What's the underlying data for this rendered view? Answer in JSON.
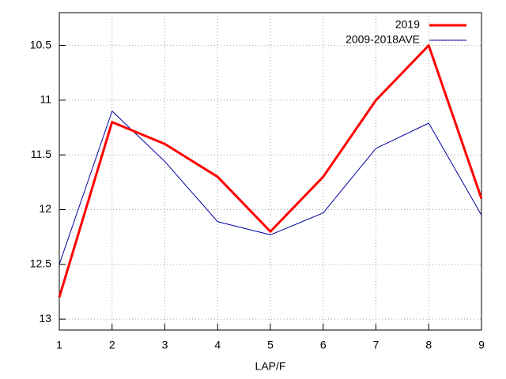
{
  "chart_data": {
    "type": "line",
    "x_label": "LAP/F",
    "x": [
      1,
      2,
      3,
      4,
      5,
      6,
      7,
      8,
      9
    ],
    "xlim": [
      1,
      9
    ],
    "xticks": [
      1,
      2,
      3,
      4,
      5,
      6,
      7,
      8,
      9
    ],
    "ylim": [
      10.2,
      13.1
    ],
    "y_reversed": true,
    "yticks": [
      10.5,
      11,
      11.5,
      12,
      12.5,
      13
    ],
    "grid": true,
    "legend": "top-right",
    "series": [
      {
        "name": "2019",
        "color": "#ff0000",
        "width": 3,
        "values": [
          12.8,
          11.2,
          11.4,
          11.7,
          12.2,
          11.7,
          11.0,
          10.5,
          11.9
        ]
      },
      {
        "name": "2009-2018AVE",
        "color": "#0000a0",
        "width": 1,
        "values": [
          12.5,
          11.1,
          11.56,
          12.11,
          12.23,
          12.03,
          11.44,
          11.21,
          12.05
        ]
      }
    ]
  }
}
